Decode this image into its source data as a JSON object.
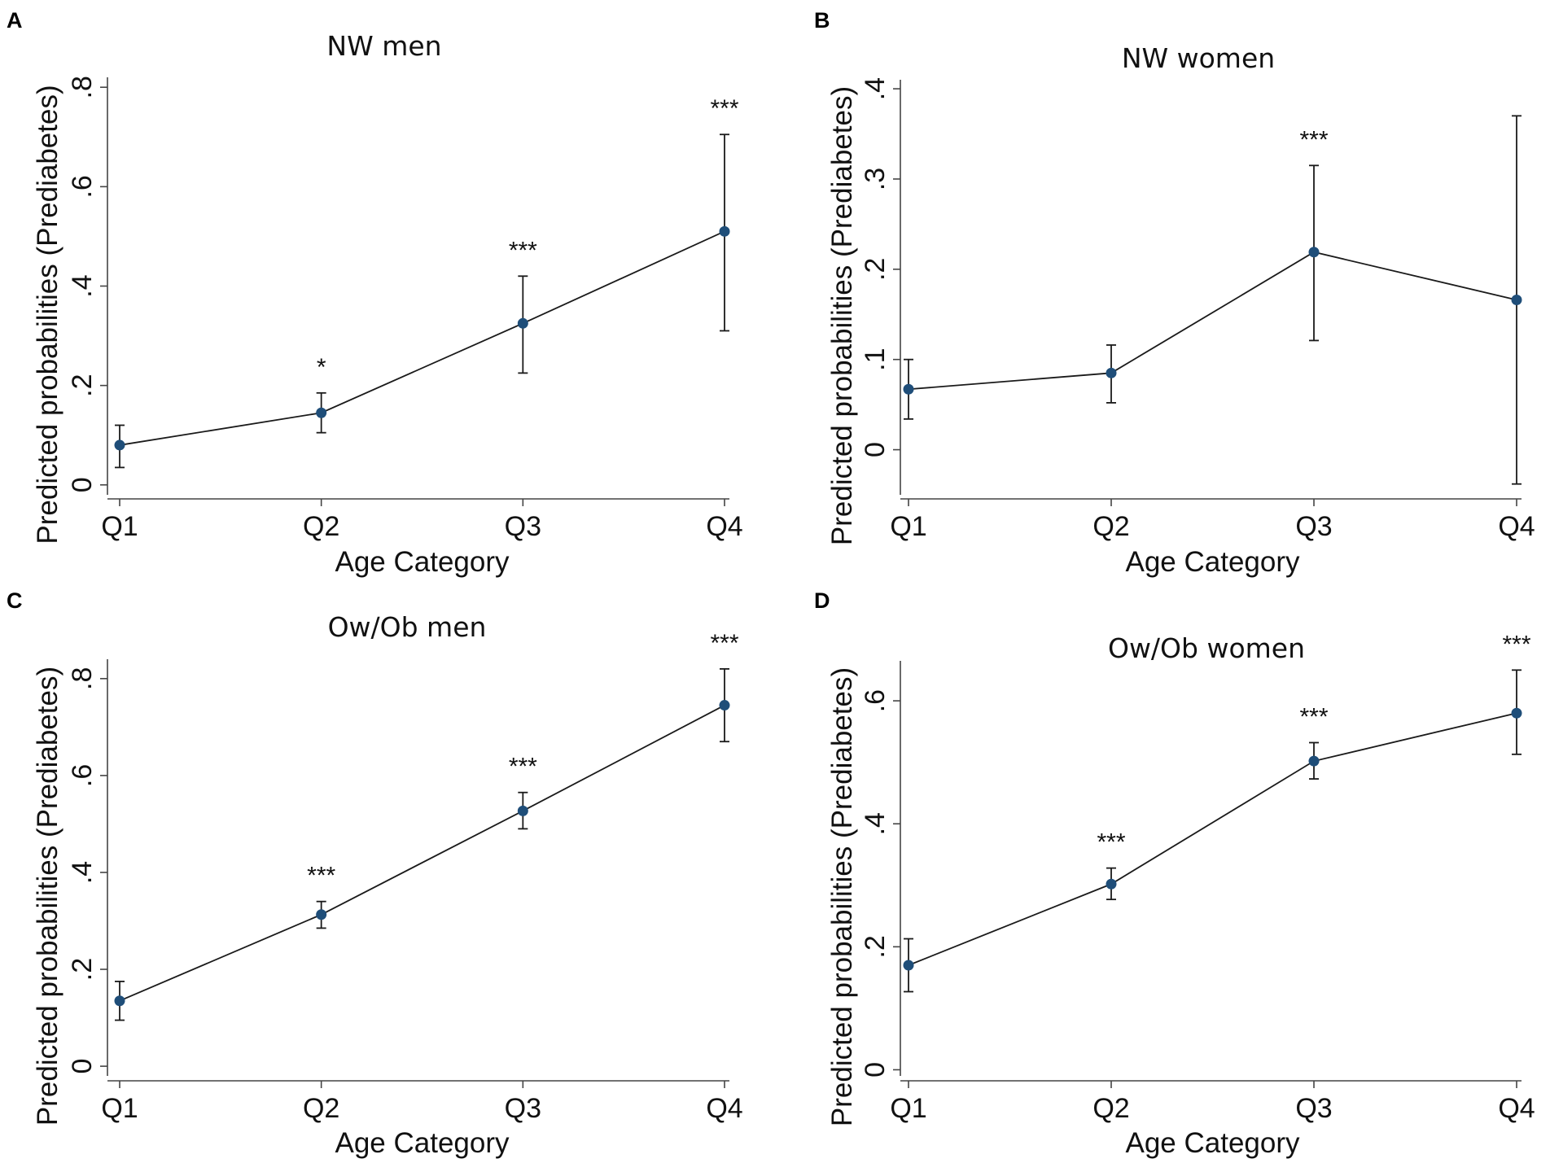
{
  "colors": {
    "marker": "#1f4e79",
    "line": "#1a1a1a",
    "axis": "#444444",
    "background": "#ffffff"
  },
  "chart_data": [
    {
      "type": "line",
      "panel": "A",
      "title": "NW men",
      "xlabel": "Age Category",
      "ylabel": "Predicted probabilities (Prediabetes)",
      "categories": [
        "Q1",
        "Q2",
        "Q3",
        "Q4"
      ],
      "values": [
        0.08,
        0.145,
        0.325,
        0.51
      ],
      "ci_low": [
        0.035,
        0.105,
        0.225,
        0.31
      ],
      "ci_high": [
        0.12,
        0.185,
        0.42,
        0.705
      ],
      "significance": [
        "",
        "*",
        "***",
        "***"
      ],
      "yticks": [
        0,
        0.2,
        0.4,
        0.6,
        0.8
      ],
      "ytick_labels": [
        "0",
        ".2",
        ".4",
        ".6",
        ".8"
      ],
      "ylim": [
        -0.02,
        0.82
      ],
      "grid": false
    },
    {
      "type": "line",
      "panel": "B",
      "title": "NW women",
      "xlabel": "Age Category",
      "ylabel": "Predicted probabilities (Prediabetes)",
      "categories": [
        "Q1",
        "Q2",
        "Q3",
        "Q4"
      ],
      "values": [
        0.067,
        0.085,
        0.219,
        0.166
      ],
      "ci_low": [
        0.034,
        0.052,
        0.121,
        -0.038
      ],
      "ci_high": [
        0.1,
        0.116,
        0.315,
        0.37
      ],
      "significance": [
        "",
        "",
        "***",
        ""
      ],
      "yticks": [
        0,
        0.1,
        0.2,
        0.3,
        0.4
      ],
      "ytick_labels": [
        "0",
        ".1",
        ".2",
        ".3",
        ".4"
      ],
      "ylim": [
        -0.05,
        0.41
      ],
      "grid": false
    },
    {
      "type": "line",
      "panel": "C",
      "title": "Ow/Ob men",
      "xlabel": "Age Category",
      "ylabel": "Predicted probabilities (Prediabetes)",
      "categories": [
        "Q1",
        "Q2",
        "Q3",
        "Q4"
      ],
      "values": [
        0.135,
        0.313,
        0.527,
        0.745
      ],
      "ci_low": [
        0.095,
        0.285,
        0.49,
        0.67
      ],
      "ci_high": [
        0.175,
        0.34,
        0.565,
        0.82
      ],
      "significance": [
        "",
        "***",
        "***",
        "***"
      ],
      "yticks": [
        0,
        0.2,
        0.4,
        0.6,
        0.8
      ],
      "ytick_labels": [
        "0",
        ".2",
        ".4",
        ".6",
        ".8"
      ],
      "ylim": [
        -0.02,
        0.84
      ],
      "grid": false
    },
    {
      "type": "line",
      "panel": "D",
      "title": "Ow/Ob women",
      "xlabel": "Age Category",
      "ylabel": "Predicted probabilities (Prediabetes)",
      "categories": [
        "Q1",
        "Q2",
        "Q3",
        "Q4"
      ],
      "values": [
        0.17,
        0.302,
        0.502,
        0.58
      ],
      "ci_low": [
        0.127,
        0.277,
        0.473,
        0.513
      ],
      "ci_high": [
        0.213,
        0.328,
        0.532,
        0.65
      ],
      "significance": [
        "",
        "***",
        "***",
        "***"
      ],
      "yticks": [
        0,
        0.2,
        0.4,
        0.6
      ],
      "ytick_labels": [
        "0",
        ".2",
        ".4",
        ".6"
      ],
      "ylim": [
        -0.01,
        0.665
      ],
      "grid": false
    }
  ]
}
